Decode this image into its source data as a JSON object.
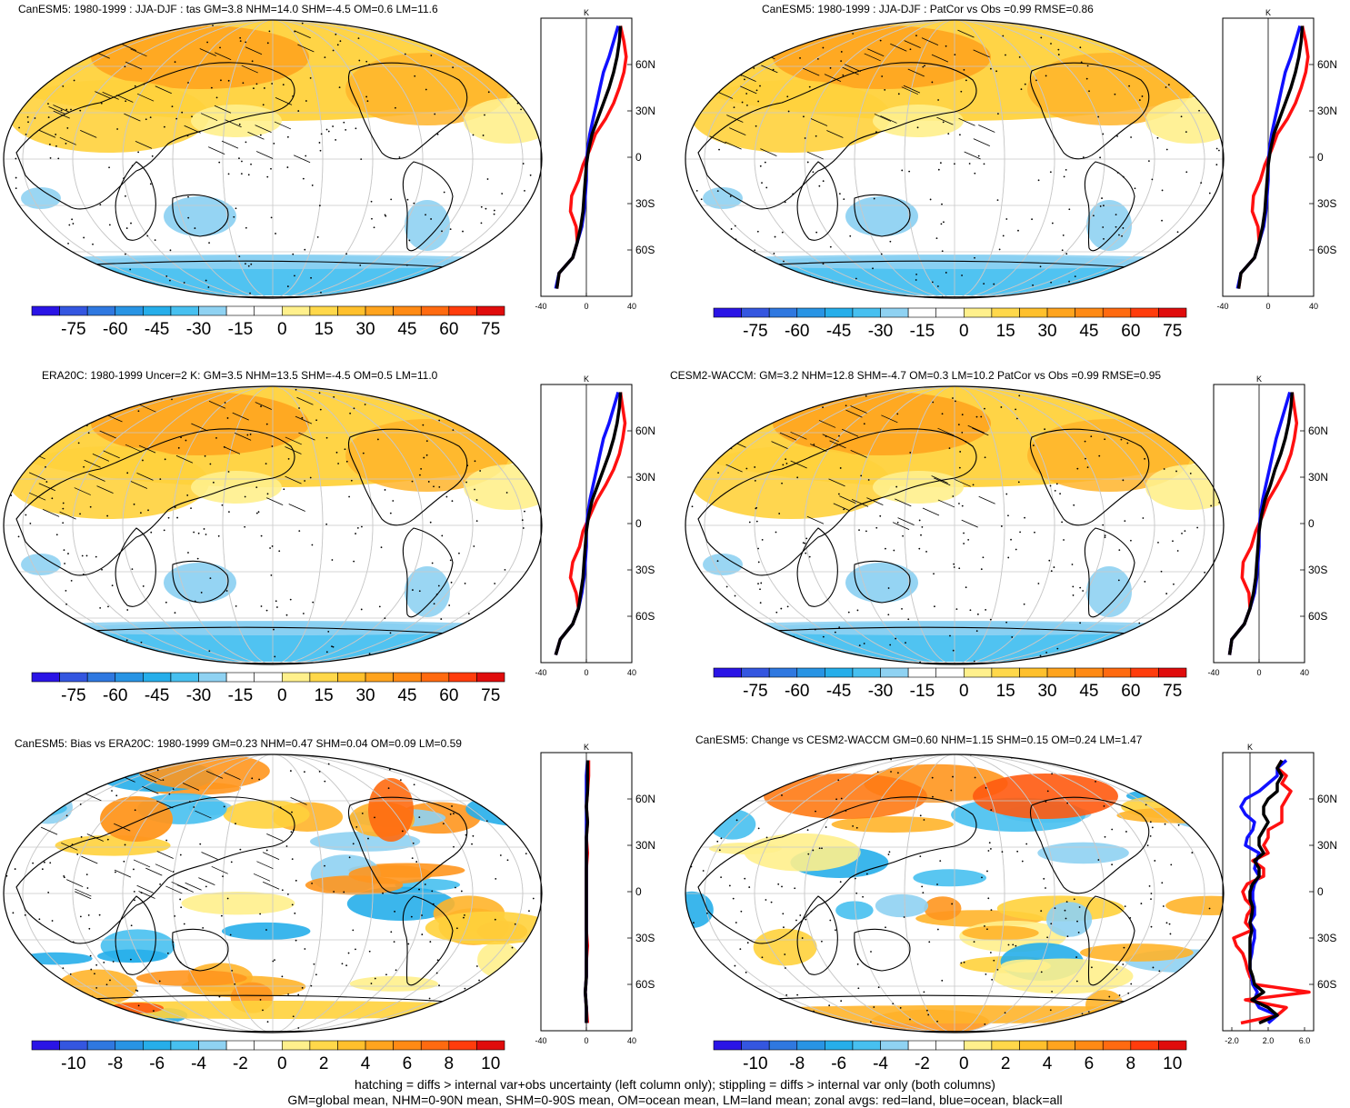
{
  "panels": [
    {
      "id": "p1",
      "title": "CanESM5: 1980-1999 : JJA-DJF : tas GM=3.8 NHM=14.0 SHM=-4.5 OM=0.6 LM=11.6",
      "colorbar": {
        "kind": "large",
        "labels": [
          "-75",
          "-60",
          "-45",
          "-30",
          "-15",
          "0",
          "15",
          "30",
          "45",
          "60",
          "75"
        ]
      },
      "zonal": {
        "unit": "K",
        "xlim": [
          -40,
          40
        ],
        "xticks": [
          "-40",
          "0",
          "40"
        ],
        "lat_labels": [
          "60N",
          "30N",
          "0",
          "30S",
          "60S"
        ]
      }
    },
    {
      "id": "p2",
      "title": "CanESM5: 1980-1999 : JJA-DJF : PatCor vs Obs =0.99 RMSE=0.86",
      "colorbar": {
        "kind": "large",
        "labels": [
          "-75",
          "-60",
          "-45",
          "-30",
          "-15",
          "0",
          "15",
          "30",
          "45",
          "60",
          "75"
        ]
      },
      "zonal": {
        "unit": "K",
        "xlim": [
          -40,
          40
        ],
        "xticks": [
          "-40",
          "0",
          "40"
        ],
        "lat_labels": [
          "60N",
          "30N",
          "0",
          "30S",
          "60S"
        ]
      }
    },
    {
      "id": "p3",
      "title": "ERA20C: 1980-1999 Uncer=2 K: GM=3.5 NHM=13.5 SHM=-4.5 OM=0.5 LM=11.0",
      "colorbar": {
        "kind": "large",
        "labels": [
          "-75",
          "-60",
          "-45",
          "-30",
          "-15",
          "0",
          "15",
          "30",
          "45",
          "60",
          "75"
        ]
      },
      "zonal": {
        "unit": "K",
        "xlim": [
          -40,
          40
        ],
        "xticks": [
          "-40",
          "0",
          "40"
        ],
        "lat_labels": [
          "60N",
          "30N",
          "0",
          "30S",
          "60S"
        ]
      }
    },
    {
      "id": "p4",
      "title": "CESM2-WACCM: GM=3.2 NHM=12.8 SHM=-4.7 OM=0.3 LM=10.2 PatCor vs Obs =0.99 RMSE=0.95",
      "colorbar": {
        "kind": "large",
        "labels": [
          "-75",
          "-60",
          "-45",
          "-30",
          "-15",
          "0",
          "15",
          "30",
          "45",
          "60",
          "75"
        ]
      },
      "zonal": {
        "unit": "K",
        "xlim": [
          -40,
          40
        ],
        "xticks": [
          "-40",
          "0",
          "40"
        ],
        "lat_labels": [
          "60N",
          "30N",
          "0",
          "30S",
          "60S"
        ]
      }
    },
    {
      "id": "p5",
      "title": "CanESM5: Bias vs ERA20C: 1980-1999 GM=0.23 NHM=0.47 SHM=0.04 OM=0.09 LM=0.59",
      "colorbar": {
        "kind": "small",
        "labels": [
          "-10",
          "-8",
          "-6",
          "-4",
          "-2",
          "0",
          "2",
          "4",
          "6",
          "8",
          "10"
        ]
      },
      "zonal": {
        "unit": "K",
        "xlim": [
          -40,
          40
        ],
        "xticks": [
          "-40",
          "0",
          "40"
        ],
        "lat_labels": [
          "60N",
          "30N",
          "0",
          "30S",
          "60S"
        ]
      }
    },
    {
      "id": "p6",
      "title": "CanESM5: Change vs CESM2-WACCM GM=0.60 NHM=1.15 SHM=0.15 OM=0.24 LM=1.47",
      "colorbar": {
        "kind": "small",
        "labels": [
          "-10",
          "-8",
          "-6",
          "-4",
          "-2",
          "0",
          "2",
          "4",
          "6",
          "8",
          "10"
        ]
      },
      "zonal": {
        "unit": "K",
        "xlim": [
          -3,
          7
        ],
        "xticks": [
          "-2.0",
          "2.0",
          "6.0"
        ],
        "lat_labels": [
          "60N",
          "30N",
          "0",
          "30S",
          "60S"
        ]
      }
    }
  ],
  "colors": {
    "scale": [
      "#2a14e6",
      "#3456e0",
      "#2f78e0",
      "#2894e4",
      "#26aeea",
      "#47c0f0",
      "#8fd2f2",
      "#ffffff",
      "#ffffff",
      "#fff08c",
      "#ffd84a",
      "#ffc02c",
      "#ffa41e",
      "#ff8a14",
      "#ff6a10",
      "#ff3c0c",
      "#e00c0c"
    ],
    "land": "#ff1010",
    "ocean": "#1010ff",
    "all": "#000000",
    "grid": "#c8c8c8"
  },
  "footer": {
    "line1": "hatching = diffs > internal var+obs uncertainty (left column only); stippling = diffs > internal var only (both columns)",
    "line2": "GM=global mean, NHM=0-90N mean, SHM=0-90S mean, OM=ocean mean, LM=land mean; zonal avgs: red=land, blue=ocean, black=all"
  },
  "chart_data": [
    {
      "type": "line",
      "title": "CanESM5: 1980-1999 : JJA-DJF : tas zonal mean",
      "ylabel": "latitude",
      "xlabel": "K",
      "xlim": [
        -40,
        40
      ],
      "ylim": [
        -90,
        90
      ],
      "lat": [
        -85,
        -75,
        -65,
        -55,
        -45,
        -35,
        -25,
        -15,
        -5,
        5,
        15,
        25,
        35,
        45,
        55,
        65,
        75,
        85
      ],
      "series": [
        {
          "name": "land",
          "values": [
            -26,
            -24,
            -12,
            -8,
            -9,
            -14,
            -13,
            -7,
            -3,
            3,
            8,
            17,
            24,
            29,
            33,
            35,
            33,
            30
          ]
        },
        {
          "name": "ocean",
          "values": [
            -27,
            -24,
            -12,
            -8,
            -4,
            -2,
            -1,
            0,
            0,
            1,
            3,
            6,
            9,
            12,
            15,
            20,
            24,
            28
          ]
        },
        {
          "name": "all",
          "values": [
            -26,
            -24,
            -12,
            -8,
            -5,
            -3,
            -2,
            -1,
            0,
            2,
            5,
            10,
            15,
            20,
            24,
            27,
            29,
            30
          ]
        }
      ]
    },
    {
      "type": "line",
      "title": "CanESM5: 1980-1999 : JJA-DJF : PatCor vs Obs",
      "ylabel": "latitude",
      "xlabel": "K",
      "xlim": [
        -40,
        40
      ],
      "ylim": [
        -90,
        90
      ],
      "lat": [
        -85,
        -75,
        -65,
        -55,
        -45,
        -35,
        -25,
        -15,
        -5,
        5,
        15,
        25,
        35,
        45,
        55,
        65,
        75,
        85
      ],
      "series": [
        {
          "name": "land",
          "values": [
            -26,
            -24,
            -12,
            -8,
            -9,
            -14,
            -13,
            -7,
            -3,
            3,
            8,
            17,
            24,
            29,
            33,
            35,
            33,
            30
          ]
        },
        {
          "name": "ocean",
          "values": [
            -27,
            -24,
            -12,
            -8,
            -4,
            -2,
            -1,
            0,
            0,
            1,
            3,
            6,
            9,
            12,
            15,
            20,
            24,
            28
          ]
        },
        {
          "name": "all",
          "values": [
            -26,
            -24,
            -12,
            -8,
            -5,
            -3,
            -2,
            -1,
            0,
            2,
            5,
            10,
            15,
            20,
            24,
            27,
            29,
            30
          ]
        }
      ]
    },
    {
      "type": "line",
      "title": "ERA20C: 1980-1999",
      "ylabel": "latitude",
      "xlabel": "K",
      "xlim": [
        -40,
        40
      ],
      "ylim": [
        -90,
        90
      ],
      "lat": [
        -85,
        -75,
        -65,
        -55,
        -45,
        -35,
        -25,
        -15,
        -5,
        5,
        15,
        25,
        35,
        45,
        55,
        65,
        75,
        85
      ],
      "series": [
        {
          "name": "land",
          "values": [
            -27,
            -23,
            -12,
            -7,
            -9,
            -14,
            -12,
            -6,
            -3,
            3,
            9,
            17,
            24,
            29,
            32,
            34,
            32,
            30
          ]
        },
        {
          "name": "ocean",
          "values": [
            -27,
            -23,
            -12,
            -7,
            -4,
            -2,
            -1,
            0,
            0,
            1,
            3,
            6,
            9,
            12,
            15,
            20,
            24,
            28
          ]
        },
        {
          "name": "all",
          "values": [
            -27,
            -23,
            -12,
            -7,
            -5,
            -3,
            -2,
            -1,
            0,
            2,
            5,
            10,
            15,
            20,
            24,
            27,
            29,
            30
          ]
        }
      ]
    },
    {
      "type": "line",
      "title": "CESM2-WACCM",
      "ylabel": "latitude",
      "xlabel": "K",
      "xlim": [
        -40,
        40
      ],
      "ylim": [
        -90,
        90
      ],
      "lat": [
        -85,
        -75,
        -65,
        -55,
        -45,
        -35,
        -25,
        -15,
        -5,
        5,
        15,
        25,
        35,
        45,
        55,
        65,
        75,
        85
      ],
      "series": [
        {
          "name": "land",
          "values": [
            -26,
            -24,
            -13,
            -8,
            -9,
            -15,
            -14,
            -7,
            -3,
            3,
            8,
            16,
            23,
            28,
            31,
            33,
            31,
            29
          ]
        },
        {
          "name": "ocean",
          "values": [
            -26,
            -24,
            -13,
            -8,
            -4,
            -2,
            -1,
            0,
            0,
            1,
            3,
            6,
            9,
            12,
            15,
            19,
            23,
            27
          ]
        },
        {
          "name": "all",
          "values": [
            -26,
            -24,
            -13,
            -8,
            -5,
            -3,
            -2,
            -1,
            0,
            2,
            5,
            10,
            14,
            19,
            23,
            26,
            28,
            29
          ]
        }
      ]
    },
    {
      "type": "line",
      "title": "CanESM5: Bias vs ERA20C",
      "ylabel": "latitude",
      "xlabel": "K",
      "xlim": [
        -40,
        40
      ],
      "ylim": [
        -90,
        90
      ],
      "lat": [
        -85,
        -75,
        -65,
        -55,
        -45,
        -35,
        -25,
        -15,
        -5,
        5,
        15,
        25,
        35,
        45,
        55,
        65,
        75,
        85
      ],
      "series": [
        {
          "name": "land",
          "values": [
            1,
            0,
            -1,
            0,
            0,
            1,
            0,
            0,
            0,
            0,
            0,
            1,
            0,
            1,
            0,
            1,
            2,
            2
          ]
        },
        {
          "name": "ocean",
          "values": [
            0,
            0,
            -1,
            0,
            0,
            0,
            0,
            0,
            0,
            0,
            0,
            0,
            0,
            0,
            0,
            0,
            0,
            1
          ]
        },
        {
          "name": "all",
          "values": [
            0,
            0,
            -1,
            0,
            0,
            0,
            0,
            0,
            0,
            0,
            0,
            0,
            0,
            1,
            0,
            1,
            1,
            1
          ]
        }
      ]
    },
    {
      "type": "line",
      "title": "CanESM5: Change vs CESM2-WACCM",
      "ylabel": "latitude",
      "xlabel": "K",
      "xlim": [
        -3,
        7
      ],
      "ylim": [
        -90,
        90
      ],
      "lat": [
        -85,
        -80,
        -75,
        -70,
        -65,
        -60,
        -55,
        -50,
        -45,
        -40,
        -35,
        -30,
        -25,
        -20,
        -15,
        -10,
        -5,
        0,
        5,
        10,
        15,
        20,
        25,
        30,
        35,
        40,
        45,
        50,
        55,
        60,
        65,
        70,
        75,
        80,
        85
      ],
      "series": [
        {
          "name": "land",
          "values": [
            -1,
            3,
            4,
            -0.5,
            6.5,
            0.5,
            0,
            -0.3,
            -0.5,
            -0.8,
            -1.5,
            -1.8,
            0.2,
            -0.5,
            -0.3,
            0.3,
            -0.5,
            -0.8,
            -0.3,
            1.5,
            1.5,
            0.3,
            2,
            1.5,
            2,
            2,
            3.5,
            3.5,
            3.5,
            4,
            4.5,
            3.5,
            4,
            3,
            3.5
          ]
        },
        {
          "name": "ocean",
          "values": [
            2,
            3,
            1,
            0.5,
            0.8,
            0.3,
            0.2,
            0,
            0,
            0.2,
            0.3,
            0.5,
            0.5,
            0,
            0.5,
            0.5,
            0.3,
            0.3,
            0.5,
            1,
            0.5,
            0.7,
            1,
            -0.5,
            -0.3,
            0.3,
            0.5,
            -0.5,
            -1,
            -0.5,
            1,
            2,
            3,
            3,
            4
          ]
        },
        {
          "name": "all",
          "values": [
            1,
            3,
            2,
            0.2,
            1.5,
            0.5,
            0.3,
            0,
            0,
            0,
            0,
            0,
            0.2,
            0,
            0.2,
            0.3,
            0,
            0,
            0.3,
            1,
            1,
            0.5,
            1.5,
            1,
            1,
            1.5,
            2,
            1.5,
            1.5,
            2,
            3,
            3,
            3.5,
            3,
            3.5
          ]
        }
      ]
    }
  ]
}
